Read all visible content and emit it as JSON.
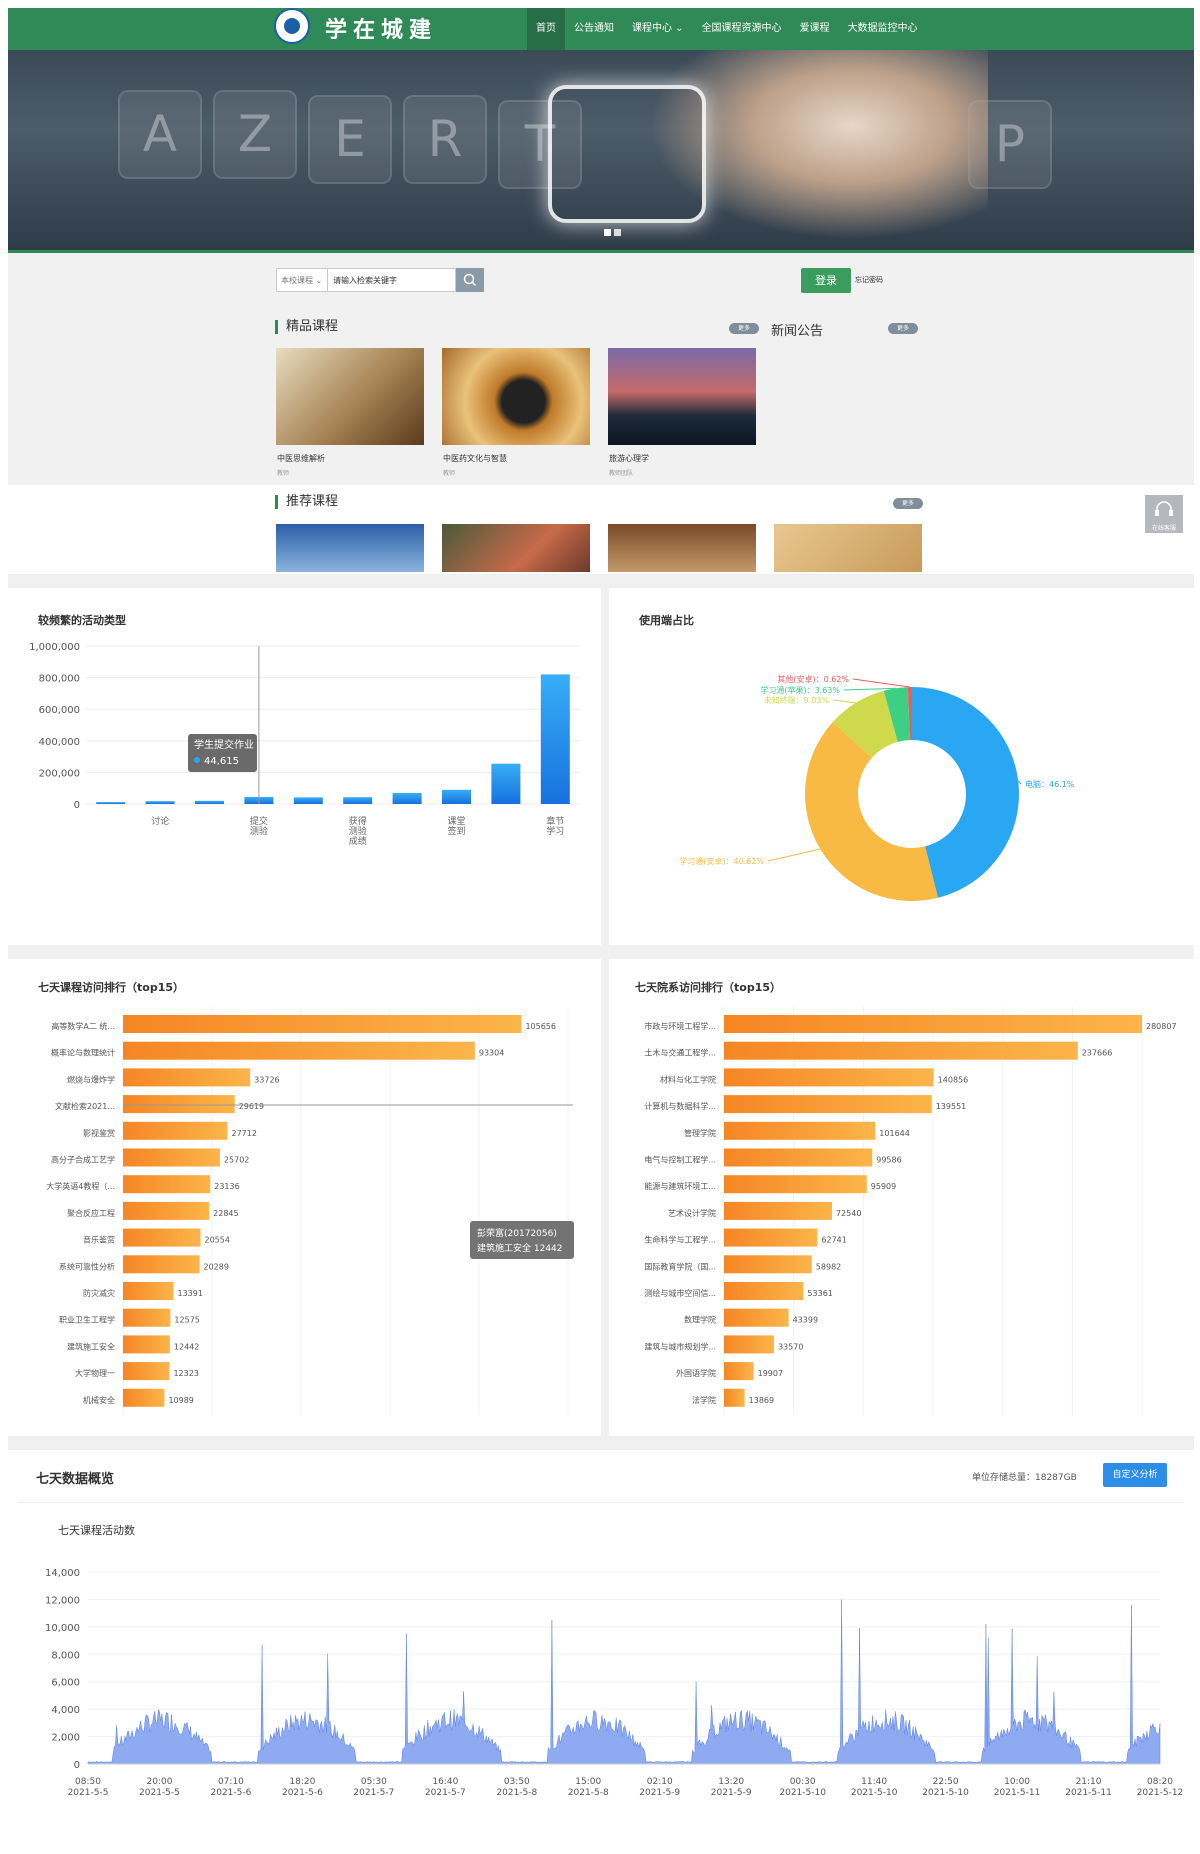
{
  "site": {
    "logo_text": "学在城建"
  },
  "nav": [
    {
      "label": "首页",
      "active": true
    },
    {
      "label": "公告通知"
    },
    {
      "label": "课程中心 ⌄"
    },
    {
      "label": "全国课程资源中心"
    },
    {
      "label": "爱课程"
    },
    {
      "label": "大数据监控中心"
    }
  ],
  "banner": {
    "keys": [
      "A",
      "Z",
      "E",
      "R",
      "T",
      "P"
    ]
  },
  "search": {
    "scope": "本校课程 ⌄",
    "placeholder": "请输入检索关键字"
  },
  "login": {
    "button": "登录",
    "forgot": "忘记密码"
  },
  "sections": {
    "featured": {
      "title": "精品课程",
      "more": "更多"
    },
    "news": {
      "title": "新闻公告",
      "more": "更多"
    },
    "recommended": {
      "title": "推荐课程",
      "more": "更多"
    }
  },
  "featured_courses": [
    {
      "title": "中医思维解析",
      "teacher": "教师"
    },
    {
      "title": "中医药文化与智慧",
      "teacher": "教师"
    },
    {
      "title": "旅游心理学",
      "teacher": "教师团队"
    }
  ],
  "service": {
    "label": "在线客服"
  },
  "panels": {
    "activity": "较频繁的活动类型",
    "terminal": "使用端占比",
    "course_rank": "七天课程访问排行（top15）",
    "dept_rank": "七天院系访问排行（top15）",
    "overview": "七天数据概览",
    "storage": "单位存储总量：18287GB",
    "custom_btn": "自定义分析",
    "activity_count": "七天课程活动数"
  },
  "chart_data": [
    {
      "type": "bar",
      "title": "较频繁的活动类型",
      "categories": [
        "",
        "讨论",
        "",
        "提交测验",
        "",
        "获得测验成绩",
        "",
        "课堂签到",
        "",
        "章节学习"
      ],
      "values": [
        12000,
        18000,
        20000,
        44615,
        42000,
        43000,
        70000,
        90000,
        255000,
        820000
      ],
      "ylim": [
        0,
        1000000
      ],
      "yticks": [
        "1,000,000",
        "800,000",
        "600,000",
        "400,000",
        "200,000",
        "0"
      ],
      "tooltip": {
        "label": "学生提交作业",
        "value": "44,615"
      }
    },
    {
      "type": "pie",
      "title": "使用端占比",
      "slices": [
        {
          "name": "电脑",
          "percent": 46.1,
          "label": "电脑：46.1%",
          "color": "#29a7f2"
        },
        {
          "name": "学习通(安卓)",
          "percent": 40.62,
          "label": "学习通(安卓)：40.62%",
          "color": "#f8ba43"
        },
        {
          "name": "未知终端",
          "percent": 9.03,
          "label": "未知终端：9.03%",
          "color": "#cfd94c"
        },
        {
          "name": "学习通(苹果)",
          "percent": 3.63,
          "label": "学习通(苹果)：3.63%",
          "color": "#3dcf84"
        },
        {
          "name": "其他(安卓)",
          "percent": 0.62,
          "label": "其他(安卓)：0.62%",
          "color": "#ef5b5b"
        }
      ]
    },
    {
      "type": "bar",
      "title": "七天课程访问排行（top15）",
      "categories": [
        "高等数学A二 统...",
        "概率论与数理统计",
        "燃烧与爆炸学",
        "文献检索2021...",
        "影视鉴赏",
        "高分子合成工艺学",
        "大学英语4教程（...",
        "聚合反应工程",
        "音乐鉴赏",
        "系统可靠性分析",
        "防灾减灾",
        "职业卫生工程学",
        "建筑施工安全",
        "大学物理一",
        "机械安全"
      ],
      "values": [
        105656,
        93304,
        33726,
        29619,
        27712,
        25702,
        23136,
        22845,
        20554,
        20289,
        13391,
        12575,
        12442,
        12323,
        10989
      ],
      "tooltip": {
        "line1": "彭荣富(20172056)",
        "line2": "建筑施工安全 12442"
      }
    },
    {
      "type": "bar",
      "title": "七天院系访问排行（top15）",
      "categories": [
        "市政与环境工程学...",
        "土木与交通工程学...",
        "材料与化工学院",
        "计算机与数据科学...",
        "管理学院",
        "电气与控制工程学...",
        "能源与建筑环境工...",
        "艺术设计学院",
        "生命科学与工程学...",
        "国际教育学院（国...",
        "测绘与城市空间信...",
        "数理学院",
        "建筑与城市规划学...",
        "外国语学院",
        "法学院"
      ],
      "values": [
        280807,
        237666,
        140856,
        139551,
        101644,
        99586,
        95909,
        72540,
        62741,
        58982,
        53361,
        43399,
        33570,
        19907,
        13869
      ]
    },
    {
      "type": "area",
      "title": "七天课程活动数",
      "ylim": [
        0,
        14000
      ],
      "yticks": [
        "14,000",
        "12,000",
        "10,000",
        "8,000",
        "6,000",
        "4,000",
        "2,000",
        "0"
      ],
      "x_ticks": [
        [
          "08:50",
          "2021-5-5"
        ],
        [
          "20:00",
          "2021-5-5"
        ],
        [
          "07:10",
          "2021-5-6"
        ],
        [
          "18:20",
          "2021-5-6"
        ],
        [
          "05:30",
          "2021-5-7"
        ],
        [
          "16:40",
          "2021-5-7"
        ],
        [
          "03:50",
          "2021-5-8"
        ],
        [
          "15:00",
          "2021-5-8"
        ],
        [
          "02:10",
          "2021-5-9"
        ],
        [
          "13:20",
          "2021-5-9"
        ],
        [
          "00:30",
          "2021-5-10"
        ],
        [
          "11:40",
          "2021-5-10"
        ],
        [
          "22:50",
          "2021-5-10"
        ],
        [
          "10:00",
          "2021-5-11"
        ],
        [
          "21:10",
          "2021-5-11"
        ],
        [
          "08:20",
          "2021-5-12"
        ]
      ],
      "peaks": [
        {
          "day": 0,
          "peak": 2800
        },
        {
          "day": 1,
          "peak": 8700
        },
        {
          "day": 2,
          "peak": 9500
        },
        {
          "day": 3,
          "peak": 10500
        },
        {
          "day": 4,
          "peak": 6000
        },
        {
          "day": 5,
          "peak": 12000
        },
        {
          "day": 6,
          "peak": 10200
        },
        {
          "day": 7,
          "peak": 11600
        }
      ]
    }
  ]
}
